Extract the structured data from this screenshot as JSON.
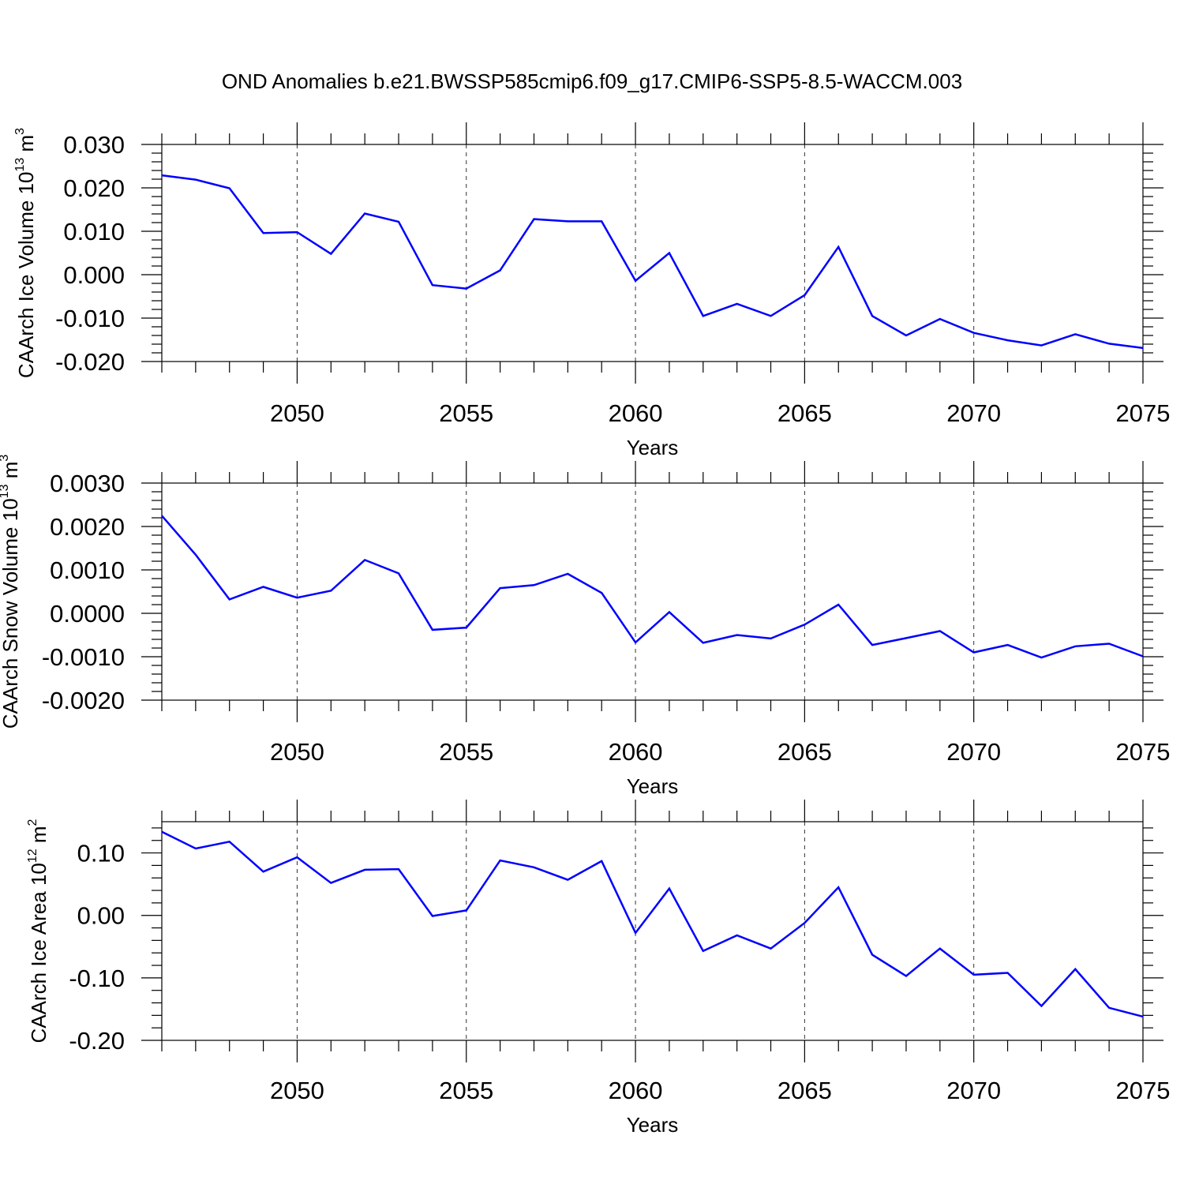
{
  "figure": {
    "title": "OND Anomalies b.e21.BWSSP585cmip6.f09_g17.CMIP6-SSP5-8.5-WACCM.003"
  },
  "colors": {
    "line": "#0000ff",
    "axes": "#000000",
    "background": "#ffffff"
  },
  "chart_data": [
    {
      "type": "line",
      "title": "",
      "xlabel": "Years",
      "ylabel_main": "CAArch Ice Volume 10",
      "ylabel_exp": "13",
      "ylabel_unit": " m",
      "ylabel_unit_exp": "3",
      "xlim": [
        2046,
        2075
      ],
      "ylim": [
        -0.02,
        0.03
      ],
      "yticks": [
        -0.02,
        -0.01,
        0.0,
        0.01,
        0.02,
        0.03
      ],
      "ytick_labels": [
        "-0.020",
        "-0.010",
        "0.000",
        "0.010",
        "0.020",
        "0.030"
      ],
      "xticks": [
        2050,
        2055,
        2060,
        2065,
        2070,
        2075
      ],
      "xtick_labels": [
        "2050",
        "2055",
        "2060",
        "2065",
        "2070",
        "2075"
      ],
      "grid": "vertical dashed at major x ticks",
      "series": [
        {
          "name": "ice_volume",
          "x": [
            2046,
            2047,
            2048,
            2049,
            2050,
            2051,
            2052,
            2053,
            2054,
            2055,
            2056,
            2057,
            2058,
            2059,
            2060,
            2061,
            2062,
            2063,
            2064,
            2065,
            2066,
            2067,
            2068,
            2069,
            2070,
            2071,
            2072,
            2073,
            2074,
            2075
          ],
          "values": [
            0.0229,
            0.0219,
            0.0199,
            0.0096,
            0.0098,
            0.0048,
            0.0141,
            0.0122,
            -0.0024,
            -0.0032,
            0.001,
            0.0128,
            0.0123,
            0.0123,
            -0.0014,
            0.005,
            -0.0095,
            -0.0067,
            -0.0095,
            -0.0047,
            0.0064,
            -0.0095,
            -0.014,
            -0.0102,
            -0.0134,
            -0.0151,
            -0.0163,
            -0.0137,
            -0.0159,
            -0.0169
          ]
        }
      ]
    },
    {
      "type": "line",
      "title": "",
      "xlabel": "Years",
      "ylabel_main": "CAArch Snow Volume 10",
      "ylabel_exp": "13",
      "ylabel_unit": " m",
      "ylabel_unit_exp": "3",
      "xlim": [
        2046,
        2075
      ],
      "ylim": [
        -0.002,
        0.003
      ],
      "yticks": [
        -0.002,
        -0.001,
        0.0,
        0.001,
        0.002,
        0.003
      ],
      "ytick_labels": [
        "-0.0020",
        "-0.0010",
        "0.0000",
        "0.0010",
        "0.0020",
        "0.0030"
      ],
      "xticks": [
        2050,
        2055,
        2060,
        2065,
        2070,
        2075
      ],
      "xtick_labels": [
        "2050",
        "2055",
        "2060",
        "2065",
        "2070",
        "2075"
      ],
      "grid": "vertical dashed at major x ticks",
      "series": [
        {
          "name": "snow_volume",
          "x": [
            2046,
            2047,
            2048,
            2049,
            2050,
            2051,
            2052,
            2053,
            2054,
            2055,
            2056,
            2057,
            2058,
            2059,
            2060,
            2061,
            2062,
            2063,
            2064,
            2065,
            2066,
            2067,
            2068,
            2069,
            2070,
            2071,
            2072,
            2073,
            2074,
            2075
          ],
          "values": [
            0.00225,
            0.00135,
            0.00032,
            0.00061,
            0.00036,
            0.00052,
            0.00123,
            0.00092,
            -0.00038,
            -0.00033,
            0.00058,
            0.00065,
            0.00091,
            0.00047,
            -0.00067,
            3e-05,
            -0.00068,
            -0.0005,
            -0.00058,
            -0.00026,
            0.0002,
            -0.00073,
            -0.00057,
            -0.00041,
            -0.0009,
            -0.00073,
            -0.00102,
            -0.00076,
            -0.0007,
            -0.00099
          ]
        }
      ]
    },
    {
      "type": "line",
      "title": "",
      "xlabel": "Years",
      "ylabel_main": "CAArch Ice Area 10",
      "ylabel_exp": "12",
      "ylabel_unit": " m",
      "ylabel_unit_exp": "2",
      "xlim": [
        2046,
        2075
      ],
      "ylim": [
        -0.2,
        0.15
      ],
      "yticks": [
        -0.2,
        -0.1,
        0.0,
        0.1
      ],
      "ytick_labels": [
        "-0.20",
        "-0.10",
        "0.00",
        "0.10"
      ],
      "xticks": [
        2050,
        2055,
        2060,
        2065,
        2070,
        2075
      ],
      "xtick_labels": [
        "2050",
        "2055",
        "2060",
        "2065",
        "2070",
        "2075"
      ],
      "grid": "vertical dashed at major x ticks",
      "series": [
        {
          "name": "ice_area",
          "x": [
            2046,
            2047,
            2048,
            2049,
            2050,
            2051,
            2052,
            2053,
            2054,
            2055,
            2056,
            2057,
            2058,
            2059,
            2060,
            2061,
            2062,
            2063,
            2064,
            2065,
            2066,
            2067,
            2068,
            2069,
            2070,
            2071,
            2072,
            2073,
            2074,
            2075
          ],
          "values": [
            0.134,
            0.107,
            0.118,
            0.07,
            0.093,
            0.052,
            0.073,
            0.074,
            -0.001,
            0.008,
            0.088,
            0.077,
            0.057,
            0.087,
            -0.028,
            0.043,
            -0.057,
            -0.032,
            -0.053,
            -0.012,
            0.045,
            -0.063,
            -0.097,
            -0.053,
            -0.095,
            -0.092,
            -0.145,
            -0.086,
            -0.148,
            -0.162
          ]
        }
      ]
    }
  ]
}
